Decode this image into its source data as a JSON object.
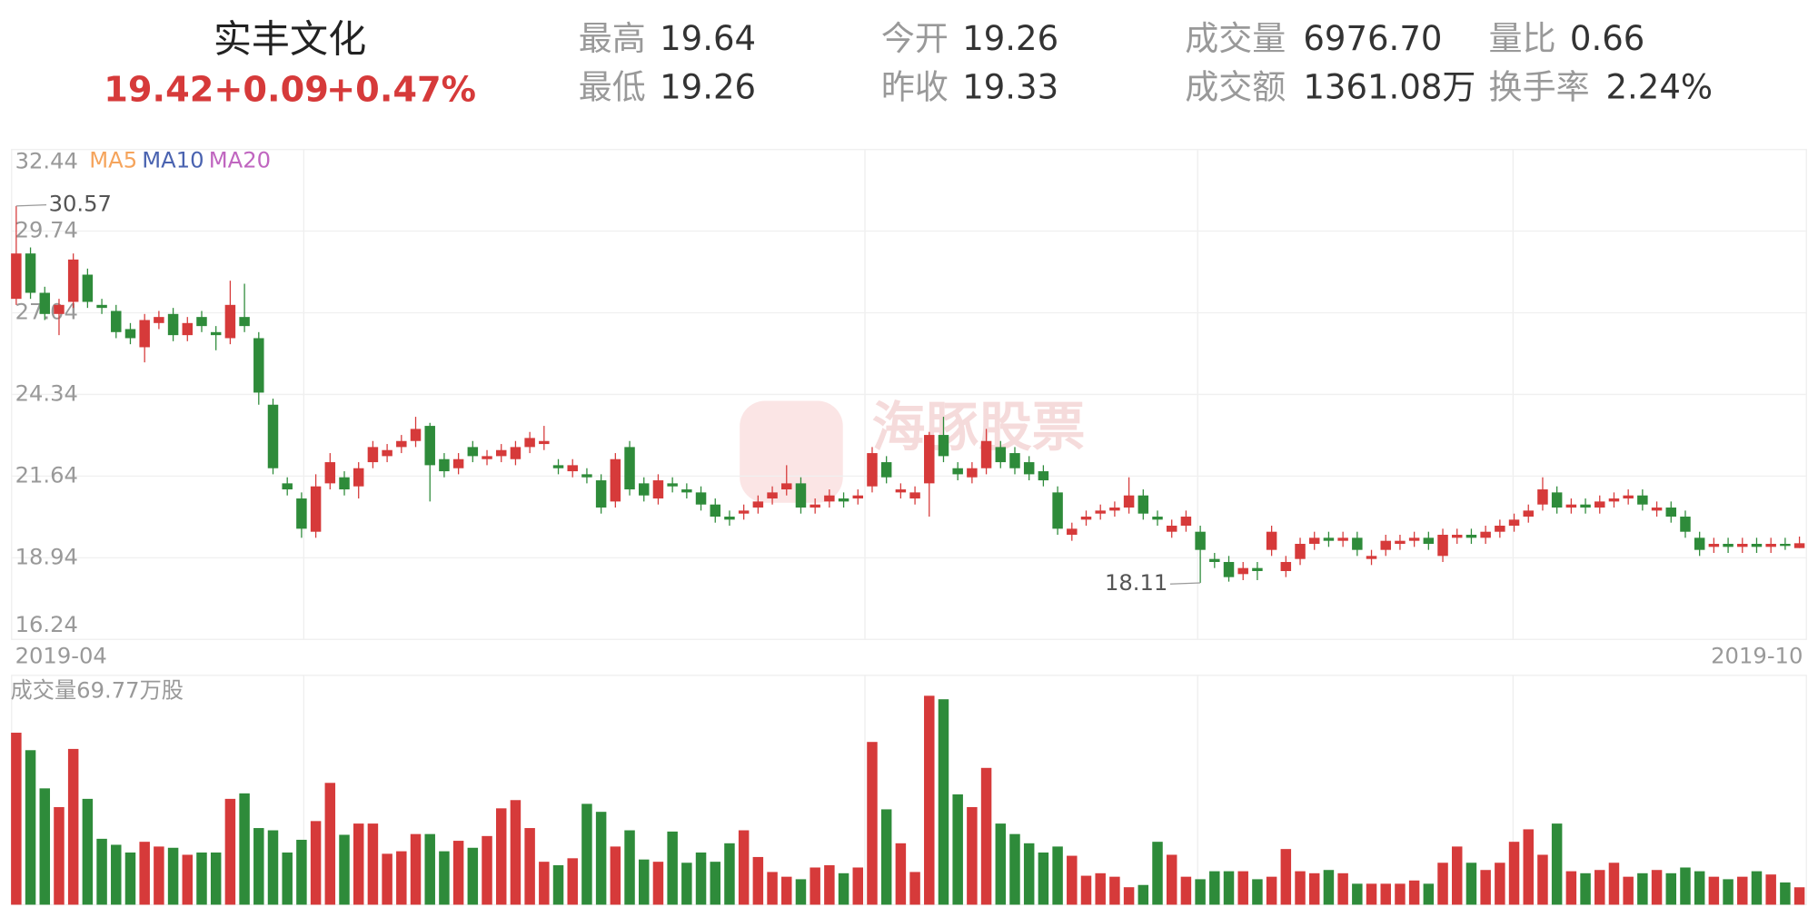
{
  "header": {
    "name": "实丰文化",
    "price": "19.42",
    "change": "+0.09",
    "change_pct": "+0.47%",
    "stats": [
      {
        "label": "最高",
        "value": "19.64"
      },
      {
        "label": "最低",
        "value": "19.26"
      },
      {
        "label": "今开",
        "value": "19.26"
      },
      {
        "label": "昨收",
        "value": "19.33"
      },
      {
        "label": "成交量",
        "value": "6976.70"
      },
      {
        "label": "成交额",
        "value": "1361.08万"
      },
      {
        "label": "量比",
        "value": "0.66"
      },
      {
        "label": "换手率",
        "value": "2.24%"
      }
    ]
  },
  "watermark": "海豚股票",
  "chart_data": {
    "type": "candlestick",
    "legend": [
      {
        "name": "MA5",
        "color": "#f5a45c"
      },
      {
        "name": "MA10",
        "color": "#4a63b0"
      },
      {
        "name": "MA20",
        "color": "#c066c0"
      }
    ],
    "up_color": "#d63a3a",
    "down_color": "#2e8b3a",
    "ylim": [
      16.24,
      32.44
    ],
    "yticks": [
      32.44,
      29.74,
      27.04,
      24.34,
      21.64,
      18.94,
      16.24
    ],
    "grid": true,
    "categories": [
      "2019-04",
      null,
      null,
      null,
      null,
      null,
      null,
      null,
      null,
      null,
      null,
      null,
      null,
      null,
      null,
      null,
      null,
      null,
      null,
      null,
      null,
      null,
      null,
      null,
      null,
      null,
      null,
      null,
      null,
      null,
      null,
      null,
      null,
      null,
      null,
      null,
      null,
      null,
      null,
      null,
      null,
      null,
      null,
      null,
      null,
      null,
      null,
      null,
      null,
      null,
      null,
      null,
      null,
      null,
      null,
      null,
      null,
      null,
      null,
      null,
      null,
      null,
      null,
      null,
      null,
      null,
      null,
      null,
      null,
      null,
      null,
      null,
      null,
      null,
      null,
      null,
      null,
      null,
      null,
      null,
      null,
      null,
      null,
      null,
      null,
      null,
      null,
      null,
      null,
      null,
      null,
      null,
      null,
      null,
      null,
      null,
      null,
      null,
      null,
      null,
      null,
      null,
      null,
      null,
      null,
      null,
      null,
      null,
      null,
      null,
      null,
      null,
      null,
      null,
      null,
      null,
      null,
      null,
      null,
      null,
      null,
      null,
      null,
      null,
      null,
      "2019-10"
    ],
    "open": [
      27.5,
      29.0,
      27.7,
      27.0,
      27.4,
      28.3,
      27.3,
      27.1,
      26.5,
      25.9,
      26.7,
      27.0,
      26.3,
      26.9,
      26.4,
      26.2,
      26.9,
      26.2,
      24.0,
      21.4,
      20.9,
      19.8,
      21.4,
      21.6,
      21.3,
      22.1,
      22.3,
      22.6,
      22.8,
      23.3,
      22.2,
      21.9,
      22.6,
      22.2,
      22.3,
      22.2,
      22.6,
      22.7,
      22.0,
      21.8,
      21.7,
      21.5,
      20.8,
      22.6,
      21.4,
      20.9,
      21.4,
      21.2,
      21.1,
      20.7,
      20.3,
      20.4,
      20.6,
      20.9,
      21.2,
      21.4,
      20.6,
      20.8,
      20.9,
      20.9,
      21.3,
      22.1,
      21.1,
      20.9,
      21.4,
      23.0,
      21.9,
      21.6,
      21.9,
      22.6,
      22.4,
      22.1,
      21.8,
      21.1,
      19.7,
      20.2,
      20.4,
      20.5,
      20.6,
      21.0,
      20.3,
      19.8,
      20.0,
      19.8,
      18.9,
      18.8,
      18.4,
      18.6,
      19.2,
      18.5,
      18.9,
      19.4,
      19.6,
      19.5,
      19.6,
      18.9,
      19.2,
      19.4,
      19.5,
      19.6,
      19.0,
      19.6,
      19.7,
      19.6,
      19.8,
      20.0,
      20.3,
      20.7,
      21.1,
      20.6,
      20.7,
      20.6,
      20.8,
      20.9,
      21.0,
      20.5,
      20.6,
      20.3,
      19.6,
      19.3,
      19.4,
      19.3,
      19.4,
      19.3,
      19.4,
      19.26
    ],
    "high": [
      30.57,
      29.2,
      27.9,
      27.5,
      29.0,
      28.5,
      27.5,
      27.3,
      26.7,
      27.0,
      27.1,
      27.2,
      26.9,
      27.1,
      26.6,
      28.1,
      28.0,
      26.4,
      24.2,
      21.6,
      21.1,
      21.7,
      22.4,
      21.8,
      22.1,
      22.8,
      22.7,
      23.0,
      23.6,
      23.4,
      22.4,
      22.4,
      22.8,
      22.5,
      22.7,
      22.8,
      23.1,
      23.3,
      22.2,
      22.2,
      21.9,
      21.7,
      22.4,
      22.8,
      21.6,
      21.7,
      21.6,
      21.4,
      21.3,
      20.9,
      20.5,
      20.7,
      21.0,
      21.3,
      22.0,
      21.6,
      20.9,
      21.2,
      21.1,
      21.2,
      22.6,
      22.3,
      21.4,
      21.3,
      23.1,
      23.6,
      22.1,
      22.1,
      23.2,
      22.8,
      22.6,
      22.3,
      22.0,
      21.3,
      20.1,
      20.5,
      20.7,
      20.8,
      21.6,
      21.2,
      20.5,
      20.2,
      20.5,
      20.0,
      19.1,
      19.0,
      18.8,
      18.8,
      20.0,
      19.0,
      19.6,
      19.8,
      19.8,
      19.8,
      19.8,
      19.2,
      19.7,
      19.7,
      19.8,
      19.8,
      19.9,
      19.9,
      19.9,
      20.0,
      20.2,
      20.4,
      20.7,
      21.6,
      21.3,
      20.9,
      20.9,
      21.0,
      21.1,
      21.2,
      21.2,
      20.8,
      20.8,
      20.5,
      19.8,
      19.6,
      19.6,
      19.6,
      19.6,
      19.6,
      19.6,
      19.64
    ],
    "low": [
      27.3,
      27.5,
      26.8,
      26.3,
      27.2,
      27.2,
      27.0,
      26.2,
      26.0,
      25.4,
      26.5,
      26.1,
      26.1,
      26.4,
      25.8,
      26.0,
      26.4,
      24.0,
      21.7,
      21.0,
      19.6,
      19.6,
      21.2,
      21.0,
      20.9,
      21.9,
      22.1,
      22.4,
      22.6,
      20.8,
      21.6,
      21.7,
      22.1,
      22.0,
      22.1,
      22.0,
      22.4,
      22.5,
      21.7,
      21.6,
      21.4,
      20.4,
      20.6,
      21.0,
      20.8,
      20.7,
      21.1,
      20.9,
      20.5,
      20.1,
      20.0,
      20.2,
      20.4,
      20.7,
      21.0,
      20.4,
      20.4,
      20.6,
      20.6,
      20.7,
      21.1,
      21.4,
      20.9,
      20.7,
      20.3,
      22.1,
      21.5,
      21.4,
      21.7,
      21.9,
      21.7,
      21.5,
      21.3,
      19.7,
      19.5,
      20.0,
      20.2,
      20.3,
      20.4,
      20.2,
      20.0,
      19.6,
      19.8,
      18.11,
      18.6,
      18.15,
      18.2,
      18.2,
      19.0,
      18.3,
      18.7,
      19.2,
      19.3,
      19.3,
      19.0,
      18.7,
      19.0,
      19.2,
      19.3,
      19.2,
      18.8,
      19.4,
      19.4,
      19.4,
      19.6,
      19.8,
      20.1,
      20.5,
      20.4,
      20.4,
      20.4,
      20.4,
      20.6,
      20.7,
      20.5,
      20.3,
      20.1,
      19.6,
      19.0,
      19.1,
      19.1,
      19.1,
      19.1,
      19.1,
      19.2,
      19.26
    ],
    "close": [
      29.0,
      27.7,
      27.0,
      27.3,
      28.8,
      27.4,
      27.2,
      26.4,
      26.2,
      26.8,
      26.9,
      26.3,
      26.7,
      26.6,
      26.3,
      27.3,
      26.6,
      24.4,
      21.9,
      21.2,
      19.9,
      21.3,
      22.1,
      21.2,
      21.9,
      22.6,
      22.5,
      22.8,
      23.2,
      22.0,
      21.8,
      22.2,
      22.3,
      22.3,
      22.5,
      22.6,
      22.9,
      22.8,
      21.9,
      22.0,
      21.6,
      20.6,
      22.2,
      21.2,
      21.0,
      21.5,
      21.3,
      21.1,
      20.7,
      20.3,
      20.2,
      20.5,
      20.8,
      21.1,
      21.4,
      20.6,
      20.7,
      21.0,
      20.8,
      21.0,
      22.4,
      21.6,
      21.2,
      21.1,
      23.0,
      22.3,
      21.7,
      21.9,
      22.8,
      22.1,
      21.9,
      21.7,
      21.5,
      19.9,
      19.9,
      20.3,
      20.5,
      20.6,
      21.0,
      20.4,
      20.2,
      20.0,
      20.3,
      19.2,
      18.8,
      18.3,
      18.6,
      18.5,
      19.8,
      18.8,
      19.4,
      19.6,
      19.5,
      19.6,
      19.2,
      19.0,
      19.5,
      19.5,
      19.6,
      19.4,
      19.7,
      19.7,
      19.6,
      19.8,
      20.0,
      20.2,
      20.5,
      21.2,
      20.6,
      20.7,
      20.6,
      20.8,
      20.9,
      21.0,
      20.7,
      20.6,
      20.3,
      19.8,
      19.2,
      19.4,
      19.3,
      19.4,
      19.3,
      19.4,
      19.33,
      19.42
    ],
    "high_annotation": 0,
    "low_annotation": 83,
    "volume": {
      "type": "bar",
      "label": "成交量69.77万股",
      "ylim": [
        0,
        840
      ],
      "values": [
        689,
        619,
        466,
        391,
        624,
        424,
        264,
        240,
        209,
        252,
        233,
        228,
        200,
        209,
        209,
        424,
        446,
        307,
        298,
        209,
        260,
        335,
        488,
        280,
        325,
        325,
        204,
        214,
        283,
        283,
        214,
        256,
        228,
        275,
        386,
        419,
        307,
        172,
        158,
        186,
        404,
        372,
        233,
        298,
        181,
        172,
        293,
        168,
        209,
        172,
        246,
        298,
        191,
        131,
        112,
        102,
        149,
        158,
        126,
        149,
        652,
        382,
        246,
        131,
        837,
        823,
        442,
        391,
        548,
        325,
        283,
        246,
        209,
        233,
        196,
        116,
        126,
        112,
        70,
        79,
        252,
        200,
        112,
        102,
        134,
        134,
        134,
        102,
        112,
        223,
        134,
        126,
        139,
        126,
        84,
        84,
        84,
        84,
        97,
        84,
        168,
        233,
        168,
        139,
        168,
        252,
        302,
        200,
        325,
        134,
        126,
        139,
        168,
        112,
        126,
        139,
        126,
        149,
        134,
        112,
        102,
        112,
        134,
        121,
        89,
        69.77
      ]
    }
  }
}
